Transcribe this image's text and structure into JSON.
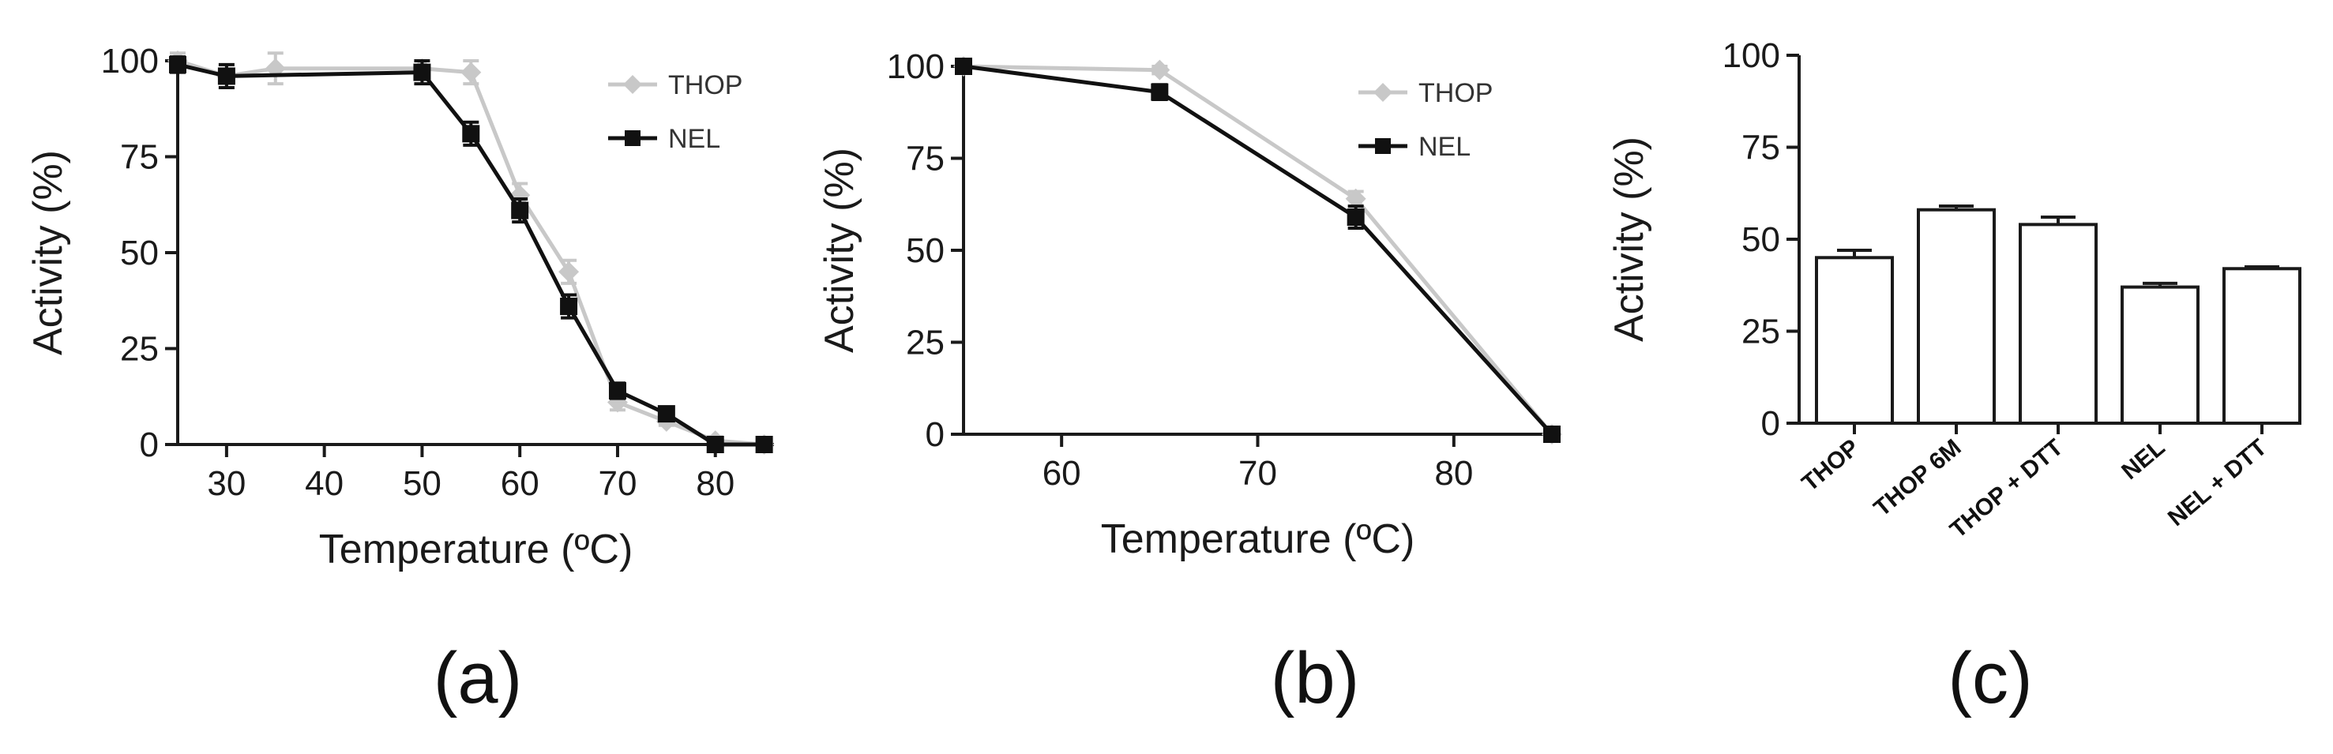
{
  "chart_data": [
    {
      "panel": "(a)",
      "type": "line",
      "title": "",
      "xlabel": "Temperature (ºC)",
      "ylabel": "Activity (%)",
      "xlim": [
        25,
        86
      ],
      "ylim": [
        0,
        100
      ],
      "x_ticks": [
        "30",
        "40",
        "50",
        "60",
        "70",
        "80"
      ],
      "y_ticks": [
        "0",
        "25",
        "50",
        "75",
        "100"
      ],
      "legend_position": "top-right",
      "series": [
        {
          "name": "THOP",
          "color": "#c8c8c8",
          "marker": "diamond",
          "x": [
            25,
            30,
            35,
            50,
            55,
            60,
            65,
            70,
            75,
            80,
            85
          ],
          "y": [
            100,
            96,
            98,
            98,
            97,
            65,
            45,
            11,
            6,
            1,
            0
          ],
          "err": [
            2,
            3,
            4,
            2,
            3,
            3,
            3,
            2,
            1,
            1,
            0
          ]
        },
        {
          "name": "NEL",
          "color": "#111111",
          "marker": "square",
          "x": [
            25,
            30,
            50,
            55,
            60,
            65,
            70,
            75,
            80,
            85
          ],
          "y": [
            99,
            96,
            97,
            81,
            61,
            36,
            14,
            8,
            0,
            0
          ],
          "err": [
            2,
            3,
            3,
            3,
            3,
            3,
            2,
            1,
            1,
            0
          ]
        }
      ]
    },
    {
      "panel": "(b)",
      "type": "line",
      "title": "",
      "xlabel": "Temperature (ºC)",
      "ylabel": "Activity (%)",
      "xlim": [
        55,
        85
      ],
      "ylim": [
        0,
        100
      ],
      "x_ticks": [
        "60",
        "70",
        "80"
      ],
      "y_ticks": [
        "0",
        "25",
        "50",
        "75",
        "100"
      ],
      "legend_position": "top-right",
      "series": [
        {
          "name": "THOP",
          "color": "#c8c8c8",
          "marker": "diamond",
          "x": [
            55,
            65,
            75,
            85
          ],
          "y": [
            100,
            99,
            64,
            0
          ],
          "err": [
            1,
            1,
            2,
            0
          ]
        },
        {
          "name": "NEL",
          "color": "#111111",
          "marker": "square",
          "x": [
            55,
            65,
            75,
            85
          ],
          "y": [
            100,
            93,
            59,
            0
          ],
          "err": [
            1,
            2,
            3,
            0
          ]
        }
      ]
    },
    {
      "panel": "(c)",
      "type": "bar",
      "title": "",
      "xlabel": "",
      "ylabel": "Activity (%)",
      "ylim": [
        0,
        100
      ],
      "y_ticks": [
        "0",
        "25",
        "50",
        "75",
        "100"
      ],
      "categories": [
        "THOP",
        "THOP 6M",
        "THOP + DTT",
        "NEL",
        "NEL + DTT"
      ],
      "values": [
        45,
        58,
        54,
        37,
        42
      ],
      "err": [
        2,
        1,
        2,
        1,
        0.5
      ]
    }
  ]
}
